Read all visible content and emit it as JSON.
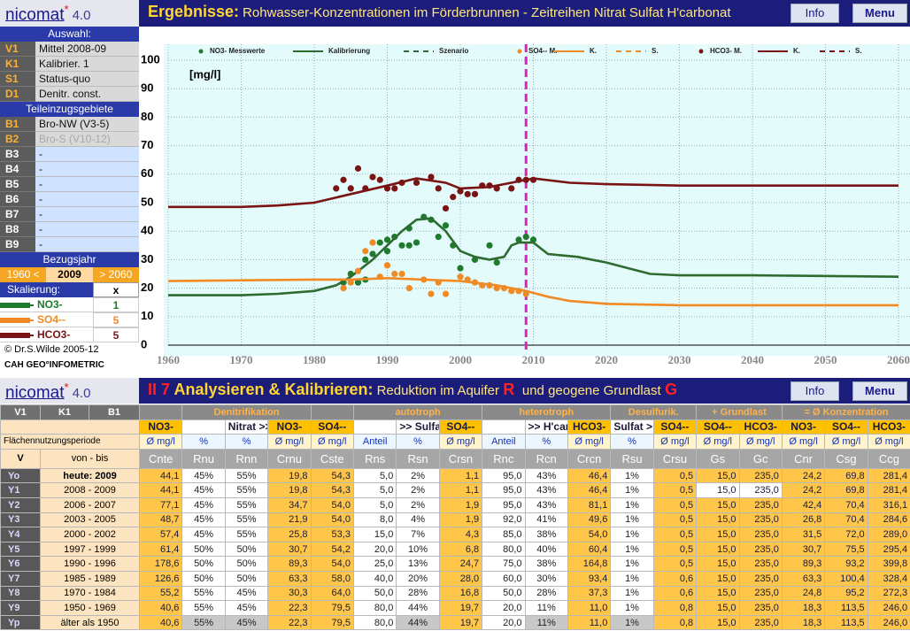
{
  "header": {
    "app": "nicomat",
    "app_mark": "*",
    "version": "4.0",
    "title_lead": "Ergebnisse:",
    "title": "Rohwasser-Konzentrationen im Förderbrunnen - Zeitreihen Nitrat Sulfat H'carbonat",
    "buttons": [
      "Info",
      "Menu"
    ]
  },
  "sidebar": {
    "auswahl_title": "Auswahl:",
    "auswahl": [
      [
        "V1",
        "Mittel 2008-09"
      ],
      [
        "K1",
        "Kalibrier. 1"
      ],
      [
        "S1",
        "Status-quo"
      ],
      [
        "D1",
        "Denitr. const."
      ]
    ],
    "gebiete_title": "Teileinzugsgebiete",
    "gebiete": [
      [
        "B1",
        "Bro-NW (V3-5)"
      ],
      [
        "B2",
        "Bro-S (V10-12)"
      ],
      [
        "B3",
        "-"
      ],
      [
        "B4",
        "-"
      ],
      [
        "B5",
        "-"
      ],
      [
        "B6",
        "-"
      ],
      [
        "B7",
        "-"
      ],
      [
        "B8",
        "-"
      ],
      [
        "B9",
        "-"
      ]
    ],
    "bezugsjahr_title": "Bezugsjahr",
    "bezugsjahr": [
      "1960 <",
      "2009",
      "> 2060"
    ],
    "skalierung_title": "Skalierung:",
    "skalierung_head": "x",
    "skalierung": [
      [
        "NO3-",
        "1"
      ],
      [
        "SO4--",
        "5"
      ],
      [
        "HCO3-",
        "5"
      ]
    ],
    "footer": [
      "© Dr.S.Wilde 2005-12",
      "CAH GEO°INFOMETRIC"
    ]
  },
  "chart_data": {
    "type": "line",
    "y_label": "[mg/l]",
    "xlim": [
      1960,
      2060
    ],
    "xticks": [
      1960,
      1970,
      1980,
      1990,
      2000,
      2010,
      2020,
      2030,
      2040,
      2050,
      2060
    ],
    "ylim": [
      0,
      100
    ],
    "yticks": [
      0,
      10,
      20,
      30,
      40,
      50,
      60,
      70,
      80,
      90,
      100
    ],
    "grid": true,
    "reference_x": 2009,
    "series": [
      {
        "name": "NO3- Messwerte",
        "type": "scatter",
        "color": "#1e7b2e",
        "x": [
          1984,
          1985,
          1986,
          1987,
          1987,
          1988,
          1989,
          1990,
          1990,
          1991,
          1992,
          1993,
          1993,
          1994,
          1995,
          1996,
          1997,
          1998,
          1999,
          2000,
          2002,
          2004,
          2005,
          2008,
          2009,
          2010
        ],
        "values": [
          22,
          25,
          22,
          23,
          30,
          32,
          36,
          37,
          33,
          38,
          35,
          41,
          35,
          36,
          45,
          44,
          38,
          42,
          35,
          27,
          30,
          35,
          29,
          37,
          38,
          37
        ]
      },
      {
        "name": "Kalibrierung",
        "type": "line",
        "color": "#2e6b30",
        "x": [
          1960,
          1970,
          1975,
          1980,
          1983,
          1985,
          1988,
          1990,
          1992,
          1994,
          1996,
          1998,
          2000,
          2002,
          2004,
          2006,
          2007,
          2008,
          2010,
          2012,
          2016,
          2020,
          2023,
          2026,
          2030,
          2040,
          2060
        ],
        "values": [
          17.5,
          17.5,
          18,
          19,
          21,
          24,
          30,
          35,
          40,
          44,
          44.5,
          40,
          33,
          31,
          30,
          31,
          35,
          36,
          36,
          32,
          31,
          29,
          27,
          25,
          24.5,
          24.5,
          24
        ]
      },
      {
        "name": "Szenario",
        "type": "dashed",
        "color": "#2e6b30",
        "x": [],
        "values": []
      },
      {
        "name": "SO4-- M.",
        "type": "scatter",
        "color": "#f08a24",
        "x": [
          1984,
          1985,
          1986,
          1987,
          1988,
          1989,
          1990,
          1991,
          1992,
          1993,
          1995,
          1996,
          1997,
          1998,
          2000,
          2001,
          2002,
          2003,
          2004,
          2005,
          2006,
          2007,
          2008,
          2009
        ],
        "values": [
          20,
          22,
          26,
          33,
          36,
          24,
          28,
          25,
          25,
          20,
          23,
          18,
          22,
          18,
          24,
          23,
          22,
          21,
          21,
          20,
          20,
          19,
          19,
          18
        ]
      },
      {
        "name": "K.",
        "type": "line",
        "color": "#f08a24",
        "x": [
          1960,
          1980,
          1985,
          1990,
          1995,
          2000,
          2005,
          2009,
          2012,
          2015,
          2020,
          2030,
          2060
        ],
        "values": [
          22.5,
          23,
          23,
          23.5,
          23,
          22.5,
          21,
          19,
          17,
          15.5,
          14.5,
          14,
          14
        ]
      },
      {
        "name": "S.",
        "type": "dashed",
        "color": "#f08a24",
        "x": [],
        "values": []
      },
      {
        "name": "HCO3- M.",
        "type": "scatter",
        "color": "#7a1414",
        "x": [
          1983,
          1984,
          1985,
          1986,
          1987,
          1988,
          1989,
          1990,
          1991,
          1992,
          1994,
          1996,
          1997,
          1998,
          1999,
          2000,
          2001,
          2002,
          2003,
          2004,
          2005,
          2007,
          2008,
          2009,
          2010
        ],
        "values": [
          55,
          58,
          55,
          62,
          55,
          59,
          58,
          55,
          55,
          57,
          57,
          59,
          55,
          48,
          52,
          54,
          53,
          53,
          56,
          56,
          55,
          55,
          58,
          58,
          58
        ]
      },
      {
        "name": "K.",
        "type": "line",
        "color": "#7a1414",
        "x": [
          1960,
          1970,
          1975,
          1980,
          1985,
          1990,
          1994,
          1998,
          2000,
          2004,
          2008,
          2010,
          2015,
          2020,
          2030,
          2060
        ],
        "values": [
          48.5,
          48.5,
          49,
          50,
          53,
          56,
          58.5,
          57,
          55,
          55.5,
          57.5,
          58.5,
          57,
          56.5,
          56,
          56
        ]
      },
      {
        "name": "S.",
        "type": "dashed",
        "color": "#7a1414",
        "x": [],
        "values": []
      }
    ]
  },
  "section2": {
    "app": "nicomat",
    "app_mark": "*",
    "version": "4.0",
    "number": "II 7",
    "title_lead": "Analysieren & Kalibrieren:",
    "title_a": "Reduktion im Aquifer",
    "mark_r": "R",
    "title_b": "und geogene Grundlast",
    "mark_g": "G",
    "buttons": [
      "Info",
      "Menu"
    ]
  },
  "table": {
    "left_head": [
      "V1",
      "K1",
      "B1"
    ],
    "period_title": "Flächennutzungsperiode",
    "left_units": [
      "V",
      "von - bis"
    ],
    "groups": [
      {
        "label": null,
        "span": 1
      },
      {
        "label": "Denitrifikation",
        "span": 3
      },
      {
        "label": null,
        "span": 1
      },
      {
        "label": "autotroph",
        "span": 3
      },
      {
        "label": "heterotroph",
        "span": 3
      },
      {
        "label": "Desulfurik.",
        "span": 2
      },
      {
        "label": "+ Grundlast",
        "span": 2
      },
      {
        "label": "= Ø Konzentration",
        "span": 3
      }
    ],
    "substances": [
      "NO3-",
      null,
      "Nitrat >>",
      "NO3-",
      "SO4--",
      null,
      ">> Sulfat",
      "SO4--",
      null,
      ">> H'carbonat",
      "HCO3-",
      "Sulfat >",
      "SO4--",
      "SO4--",
      "HCO3-",
      "NO3-",
      "SO4--",
      "HCO3-"
    ],
    "units": [
      "Ø mg/l",
      "%",
      "%",
      "Ø mg/l",
      "Ø mg/l",
      "Anteil",
      "%",
      "Ø mg/l",
      "Anteil",
      "%",
      "Ø mg/l",
      "%",
      "Ø mg/l",
      "Ø mg/l",
      "Ø mg/l",
      "Ø mg/l",
      "Ø mg/l",
      "Ø mg/l"
    ],
    "columns": [
      "Cnte",
      "Rnu",
      "Rnn",
      "Crnu",
      "Cste",
      "Rns",
      "Rsn",
      "Crsn",
      "Rnc",
      "Rcn",
      "Crcn",
      "Rsu",
      "Crsu",
      "Gs",
      "Gc",
      "Cnr",
      "Csg",
      "Ccg"
    ],
    "rows": [
      {
        "code": "Yo",
        "period": "heute:  2009",
        "cells": [
          "44,1",
          "45%",
          "55%",
          "19,8",
          "54,3",
          "5,0",
          "2%",
          "1,1",
          "95,0",
          "43%",
          "46,4",
          "1%",
          "0,5",
          "15,0",
          "235,0",
          "24,2",
          "69,8",
          "281,4"
        ]
      },
      {
        "code": "Y1",
        "period": "2008 - 2009",
        "cells": [
          "44,1",
          "45%",
          "55%",
          "19,8",
          "54,3",
          "5,0",
          "2%",
          "1,1",
          "95,0",
          "43%",
          "46,4",
          "1%",
          "0,5",
          "15,0",
          "235,0",
          "24,2",
          "69,8",
          "281,4"
        ]
      },
      {
        "code": "Y2",
        "period": "2006 - 2007",
        "cells": [
          "77,1",
          "45%",
          "55%",
          "34,7",
          "54,0",
          "5,0",
          "2%",
          "1,9",
          "95,0",
          "43%",
          "81,1",
          "1%",
          "0,5",
          "15,0",
          "235,0",
          "42,4",
          "70,4",
          "316,1"
        ]
      },
      {
        "code": "Y3",
        "period": "2003 - 2005",
        "cells": [
          "48,7",
          "45%",
          "55%",
          "21,9",
          "54,0",
          "8,0",
          "4%",
          "1,9",
          "92,0",
          "41%",
          "49,6",
          "1%",
          "0,5",
          "15,0",
          "235,0",
          "26,8",
          "70,4",
          "284,6"
        ]
      },
      {
        "code": "Y4",
        "period": "2000 - 2002",
        "cells": [
          "57,4",
          "45%",
          "55%",
          "25,8",
          "53,3",
          "15,0",
          "7%",
          "4,3",
          "85,0",
          "38%",
          "54,0",
          "1%",
          "0,5",
          "15,0",
          "235,0",
          "31,5",
          "72,0",
          "289,0"
        ]
      },
      {
        "code": "Y5",
        "period": "1997 - 1999",
        "cells": [
          "61,4",
          "50%",
          "50%",
          "30,7",
          "54,2",
          "20,0",
          "10%",
          "6,8",
          "80,0",
          "40%",
          "60,4",
          "1%",
          "0,5",
          "15,0",
          "235,0",
          "30,7",
          "75,5",
          "295,4"
        ]
      },
      {
        "code": "Y6",
        "period": "1990 - 1996",
        "cells": [
          "178,6",
          "50%",
          "50%",
          "89,3",
          "54,0",
          "25,0",
          "13%",
          "24,7",
          "75,0",
          "38%",
          "164,8",
          "1%",
          "0,5",
          "15,0",
          "235,0",
          "89,3",
          "93,2",
          "399,8"
        ]
      },
      {
        "code": "Y7",
        "period": "1985 - 1989",
        "cells": [
          "126,6",
          "50%",
          "50%",
          "63,3",
          "58,0",
          "40,0",
          "20%",
          "28,0",
          "60,0",
          "30%",
          "93,4",
          "1%",
          "0,6",
          "15,0",
          "235,0",
          "63,3",
          "100,4",
          "328,4"
        ]
      },
      {
        "code": "Y8",
        "period": "1970 - 1984",
        "cells": [
          "55,2",
          "55%",
          "45%",
          "30,3",
          "64,0",
          "50,0",
          "28%",
          "16,8",
          "50,0",
          "28%",
          "37,3",
          "1%",
          "0,6",
          "15,0",
          "235,0",
          "24,8",
          "95,2",
          "272,3"
        ]
      },
      {
        "code": "Y9",
        "period": "1950 - 1969",
        "cells": [
          "40,6",
          "55%",
          "45%",
          "22,3",
          "79,5",
          "80,0",
          "44%",
          "19,7",
          "20,0",
          "11%",
          "11,0",
          "1%",
          "0,8",
          "15,0",
          "235,0",
          "18,3",
          "113,5",
          "246,0"
        ]
      },
      {
        "code": "Yp",
        "period": "älter als 1950",
        "cells": [
          "40,6",
          "55%",
          "45%",
          "22,3",
          "79,5",
          "80,0",
          "44%",
          "19,7",
          "20,0",
          "11%",
          "11,0",
          "1%",
          "0,8",
          "15,0",
          "235,0",
          "18,3",
          "113,5",
          "246,0"
        ]
      }
    ]
  }
}
